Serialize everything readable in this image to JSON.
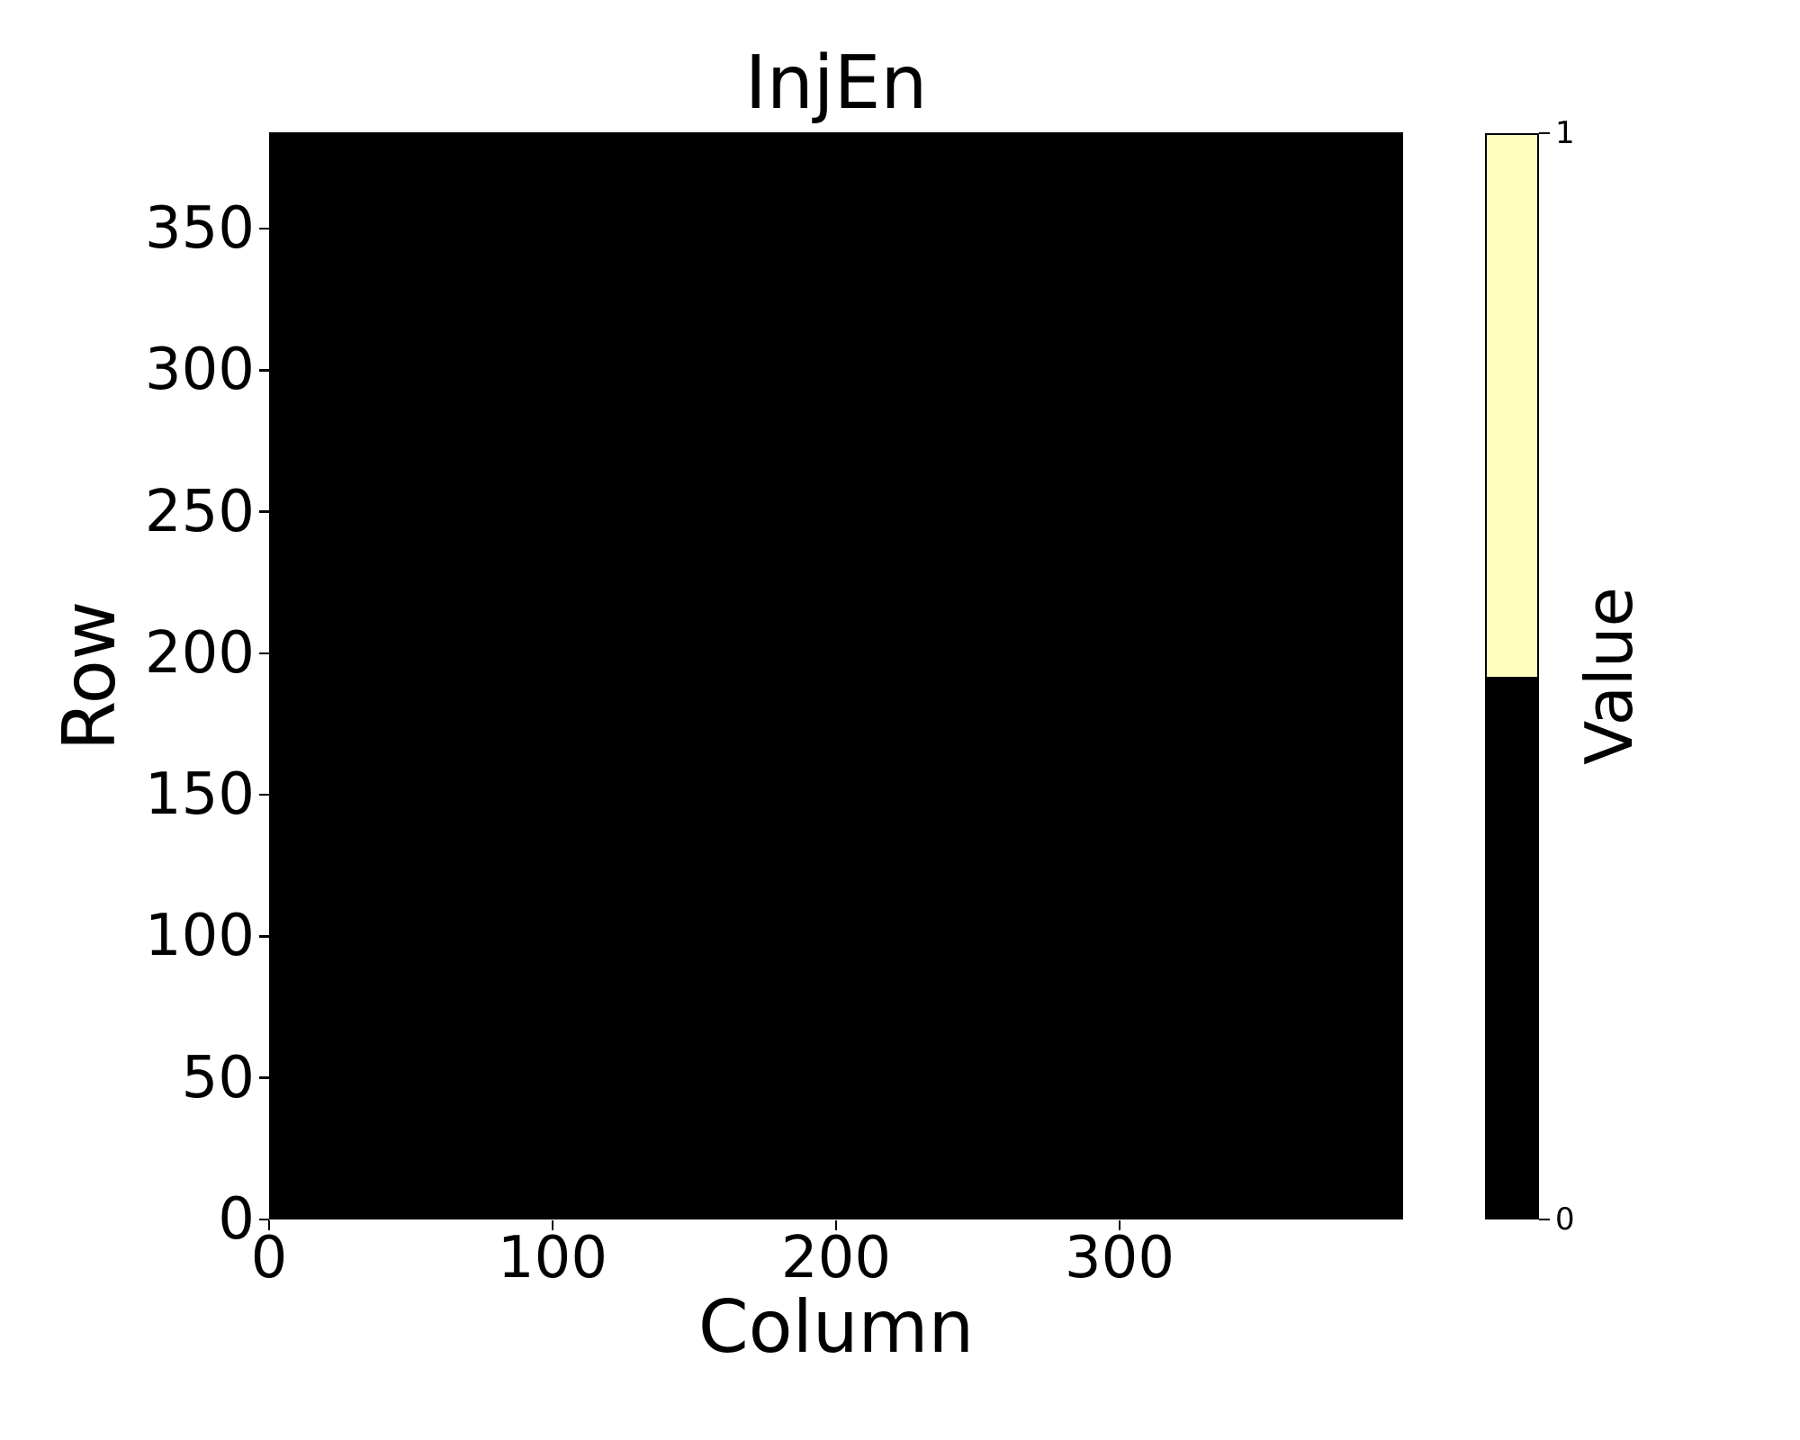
{
  "figure": {
    "background_color": "#ffffff",
    "text_color": "#000000"
  },
  "chart_data": {
    "type": "heatmap",
    "title": "InjEn",
    "xlabel": "Column",
    "ylabel": "Row",
    "x_range": [
      0,
      400
    ],
    "y_range": [
      0,
      384
    ],
    "x_ticks": [
      0,
      100,
      200,
      300
    ],
    "y_ticks": [
      0,
      50,
      100,
      150,
      200,
      250,
      300,
      350
    ],
    "grid": false,
    "uniform_value": 0,
    "data_color": "#000000",
    "colorbar": {
      "label": "Value",
      "ticks": [
        0,
        1
      ],
      "tick_labels": [
        "0",
        "1"
      ],
      "segments": [
        {
          "value": 0,
          "color": "#000000",
          "range": [
            0,
            0.5
          ]
        },
        {
          "value": 1,
          "color": "#fcfdbf",
          "range": [
            0.5,
            1
          ]
        }
      ]
    }
  }
}
